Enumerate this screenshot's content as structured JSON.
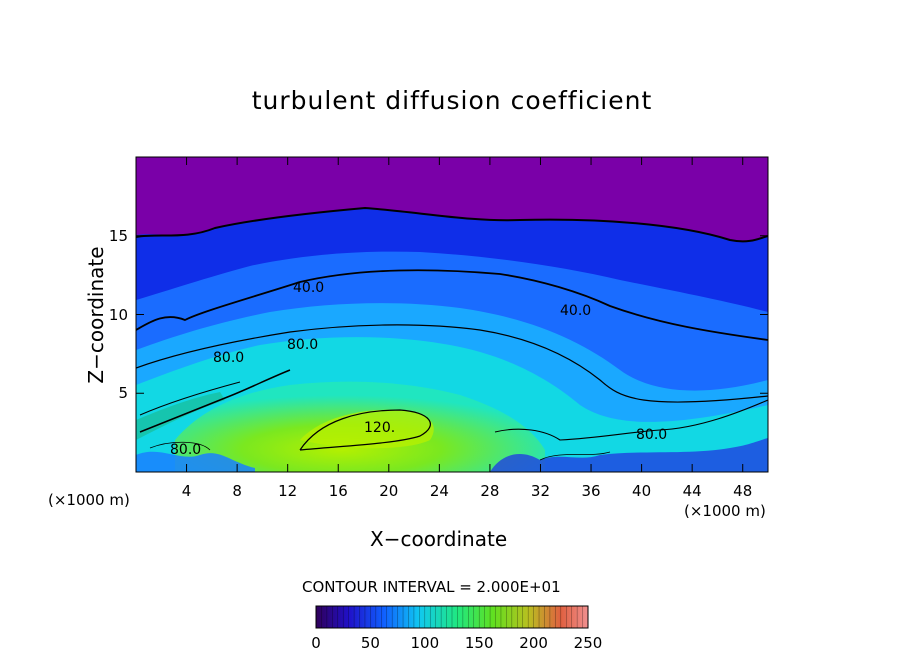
{
  "chart_data": {
    "type": "heatmap",
    "title": "turbulent diffusion coefficient",
    "xlabel": "X−coordinate",
    "ylabel": "Z−coordinate",
    "x_unit_left": "(×1000 m)",
    "x_unit_right": "(×1000 m)",
    "xlim": [
      0,
      50
    ],
    "ylim": [
      0,
      20
    ],
    "x_ticks": [
      "4",
      "8",
      "12",
      "16",
      "20",
      "24",
      "28",
      "32",
      "36",
      "40",
      "44",
      "48"
    ],
    "y_ticks": [
      "5",
      "10",
      "15"
    ],
    "contour_interval_text": "CONTOUR INTERVAL = 2.000E+01",
    "contour_labels": [
      "40.0",
      "40.0",
      "80.0",
      "80.0",
      "80.0",
      "80.0",
      "120."
    ],
    "colorbar": {
      "min": 0,
      "max": 250,
      "ticks": [
        "0",
        "50",
        "100",
        "150",
        "200",
        "250"
      ]
    },
    "colors": {
      "top_purple": "#7a00a8",
      "dark_blue": "#1030e0",
      "mid_blue": "#1a80ff",
      "cyan": "#10d8e0",
      "green": "#66e818",
      "yellow_green": "#a8f000"
    }
  }
}
